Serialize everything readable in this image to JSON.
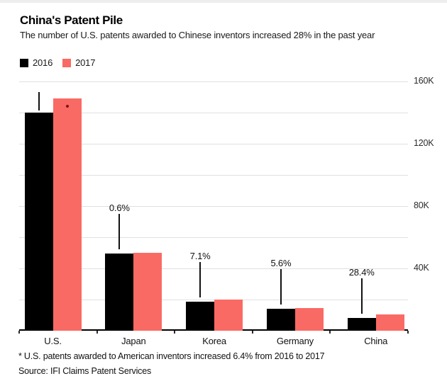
{
  "header": {
    "title": "China's Patent Pile",
    "subtitle": "The number of U.S. patents awarded to Chinese inventors increased 28% in the past year"
  },
  "legend": {
    "items": [
      {
        "label": "2016",
        "color": "#000000"
      },
      {
        "label": "2017",
        "color": "#fa6a64"
      }
    ]
  },
  "footnote": "* U.S. patents awarded to American inventors increased 6.4% from 2016 to 2017",
  "source": "Source: IFI Claims Patent Services",
  "colors": {
    "bar_2016": "#000000",
    "bar_2017": "#fa6a64",
    "gridline": "#e0e0e0",
    "axis": "#000000",
    "annotation_text": "#111111",
    "asterisk_marker": "#7a1413"
  },
  "chart_data": {
    "type": "bar",
    "title": "China's Patent Pile",
    "subtitle": "The number of U.S. patents awarded to Chinese inventors increased 28% in the past year",
    "categories": [
      "U.S.",
      "Japan",
      "Korea",
      "Germany",
      "China"
    ],
    "series": [
      {
        "name": "2016",
        "color": "#000000",
        "values": [
          140000,
          49700,
          18800,
          13900,
          8000
        ]
      },
      {
        "name": "2017",
        "color": "#fa6a64",
        "values": [
          149000,
          50000,
          20100,
          14700,
          10300
        ]
      }
    ],
    "annotations": [
      {
        "category": "U.S.",
        "label": ""
      },
      {
        "category": "Japan",
        "label": "0.6%"
      },
      {
        "category": "Korea",
        "label": "7.1%"
      },
      {
        "category": "Germany",
        "label": "5.6%"
      },
      {
        "category": "China",
        "label": "28.4%"
      }
    ],
    "asterisk_marker": {
      "category": "U.S.",
      "series": "2017",
      "color": "#7a1413"
    },
    "ylim": [
      0,
      160000
    ],
    "yticks": [
      {
        "value": 160000,
        "label": "160K"
      },
      {
        "value": 120000,
        "label": "120K"
      },
      {
        "value": 80000,
        "label": "80K"
      },
      {
        "value": 40000,
        "label": "40K"
      }
    ],
    "gridline_step": 20000,
    "grid": true,
    "ytick_side": "right",
    "legend_position": "top-left"
  }
}
